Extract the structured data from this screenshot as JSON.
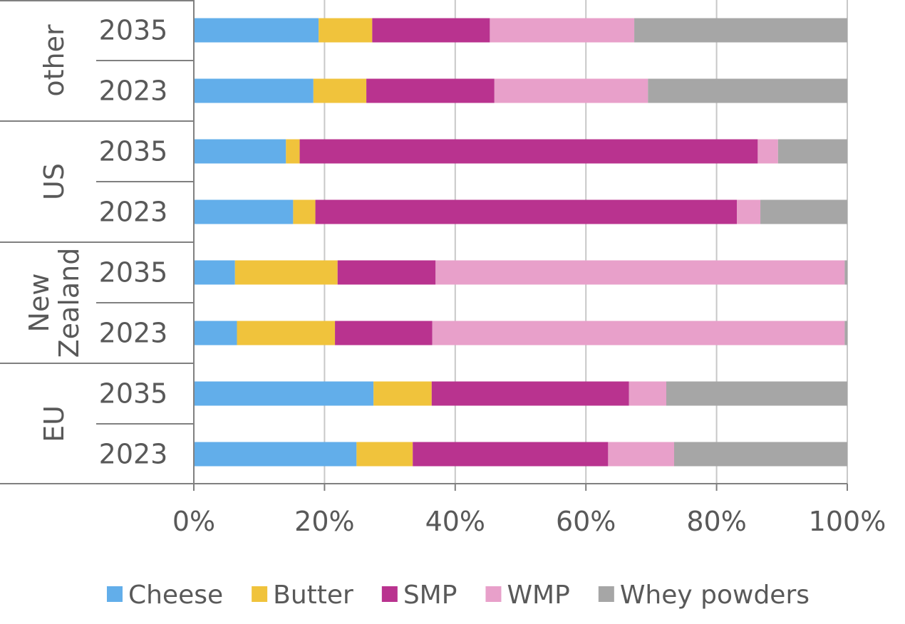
{
  "chart_data": {
    "type": "bar",
    "orientation": "horizontal",
    "stacked": "percent",
    "title": "",
    "xlabel": "",
    "ylabel": "",
    "xlim": [
      0,
      100
    ],
    "x_ticks": [
      "0%",
      "20%",
      "40%",
      "60%",
      "80%",
      "100%"
    ],
    "grid": "vertical",
    "legend_position": "bottom",
    "groups": [
      {
        "label": "other",
        "label_lines": [
          "other"
        ],
        "categories": [
          "2035",
          "2023"
        ]
      },
      {
        "label": "US",
        "label_lines": [
          "US"
        ],
        "categories": [
          "2035",
          "2023"
        ]
      },
      {
        "label": "New Zealand",
        "label_lines": [
          "New",
          "Zealand"
        ],
        "categories": [
          "2035",
          "2023"
        ]
      },
      {
        "label": "EU",
        "label_lines": [
          "EU"
        ],
        "categories": [
          "2035",
          "2023"
        ]
      }
    ],
    "series": [
      {
        "name": "Cheese",
        "color": "#62AEEA",
        "values": [
          19.1,
          18.3,
          14.1,
          15.2,
          6.3,
          6.6,
          27.5,
          24.9
        ]
      },
      {
        "name": "Butter",
        "color": "#F0C33C",
        "values": [
          8.2,
          8.1,
          2.1,
          3.4,
          15.7,
          15.0,
          8.9,
          8.6
        ]
      },
      {
        "name": "SMP",
        "color": "#B9338F",
        "values": [
          18.0,
          19.6,
          70.1,
          64.5,
          15.0,
          14.9,
          30.2,
          29.9
        ]
      },
      {
        "name": "WMP",
        "color": "#E8A0CA",
        "values": [
          22.1,
          23.5,
          3.1,
          3.6,
          62.6,
          63.1,
          5.7,
          10.1
        ]
      },
      {
        "name": "Whey powders",
        "color": "#A6A6A6",
        "values": [
          32.6,
          30.5,
          10.6,
          13.3,
          0.4,
          0.4,
          27.7,
          26.5
        ]
      }
    ]
  }
}
